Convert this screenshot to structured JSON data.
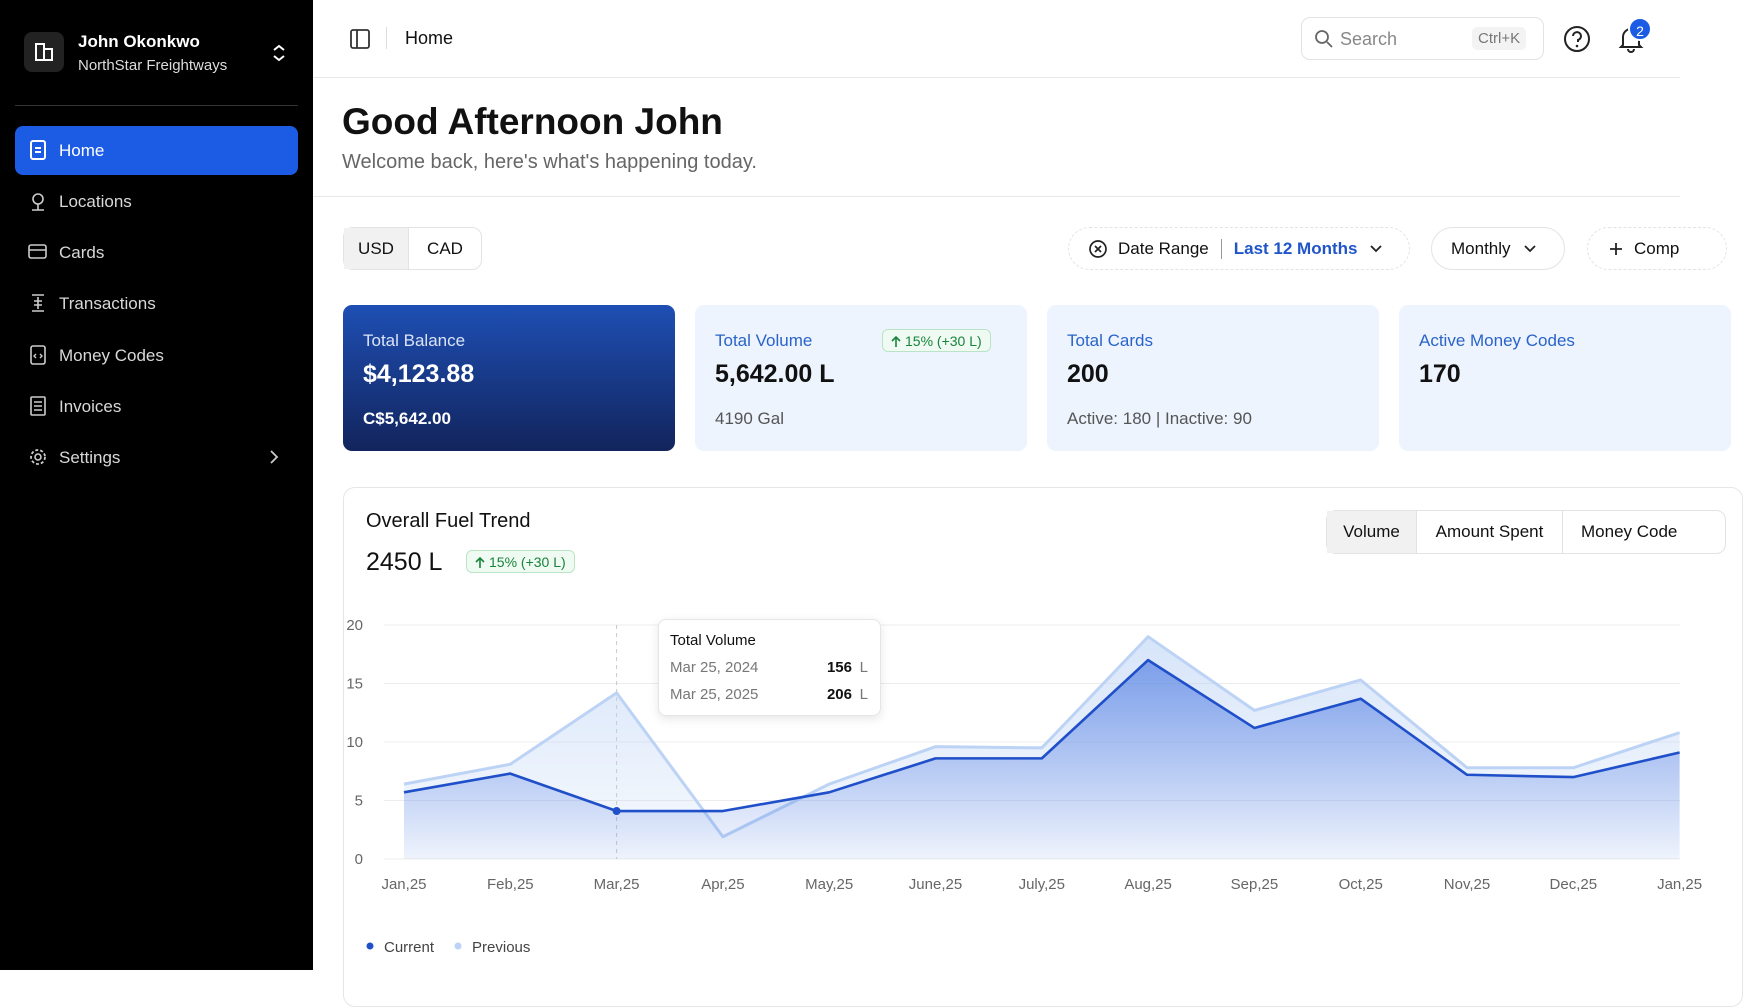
{
  "sidebar": {
    "user": {
      "name": "John Okonkwo",
      "company": "NorthStar Freightways"
    },
    "nav": [
      "Home",
      "Locations",
      "Cards",
      "Transactions",
      "Money Codes",
      "Invoices",
      "Settings"
    ]
  },
  "header": {
    "breadcrumb": "Home",
    "search": {
      "placeholder": "Search",
      "shortcut": "Ctrl+K"
    },
    "notifications": "2"
  },
  "greeting": {
    "title": "Good Afternoon John",
    "subtitle": "Welcome back, here's what's happening today."
  },
  "filters": {
    "currencies": [
      "USD",
      "CAD"
    ],
    "date_range_label": "Date Range",
    "date_range_value": "Last 12 Months",
    "period": "Monthly",
    "compare": "Comp"
  },
  "stats": [
    {
      "label": "Total Balance",
      "value": "$4,123.88",
      "sub": "C$5,642.00"
    },
    {
      "label": "Total Volume",
      "value": "5,642.00 L",
      "sub": "4190 Gal",
      "badge": "15% (+30 L)"
    },
    {
      "label": "Total Cards",
      "value": "200",
      "sub": "Active: 180 | Inactive: 90"
    },
    {
      "label": "Active Money Codes",
      "value": "170"
    }
  ],
  "trend": {
    "title": "Overall Fuel Trend",
    "total": "2450 L",
    "badge": "15% (+30 L)",
    "tabs": [
      "Volume",
      "Amount Spent",
      "Money Code"
    ],
    "tooltip": {
      "title": "Total Volume",
      "rows": [
        {
          "date": "Mar 25, 2024",
          "value": "156",
          "unit": "L"
        },
        {
          "date": "Mar 25, 2025",
          "value": "206",
          "unit": "L"
        }
      ]
    }
  },
  "chart_data": {
    "type": "line",
    "categories": [
      "Jan,25",
      "Feb,25",
      "Mar,25",
      "Apr,25",
      "May,25",
      "June,25",
      "July,25",
      "Aug,25",
      "Sep,25",
      "Oct,25",
      "Nov,25",
      "Dec,25",
      "Jan,25"
    ],
    "series": [
      {
        "name": "Current",
        "color": "#1f4fc9",
        "values": [
          5.7,
          7.3,
          4.1,
          4.1,
          5.7,
          8.6,
          8.6,
          17,
          11.2,
          13.7,
          7.2,
          7,
          9.1
        ]
      },
      {
        "name": "Previous",
        "color": "#bcd3f5",
        "values": [
          6.4,
          8.1,
          14.2,
          1.9,
          6.4,
          9.6,
          9.5,
          19,
          12.7,
          15.3,
          7.8,
          7.8,
          10.8
        ]
      }
    ],
    "ylim": [
      0,
      20
    ],
    "yticks": [
      0,
      5,
      10,
      15,
      20
    ],
    "grid": true
  }
}
